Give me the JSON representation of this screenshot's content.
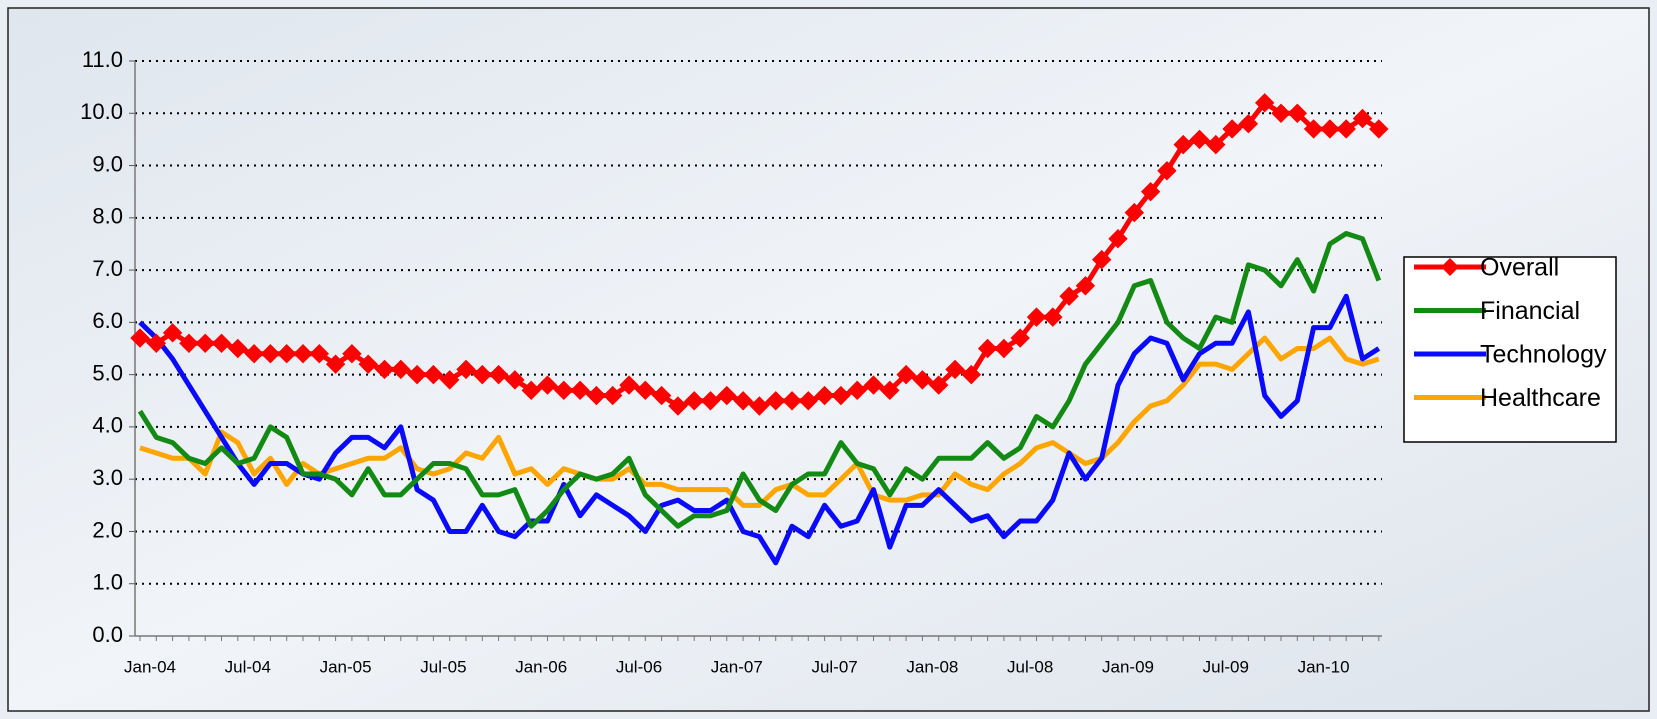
{
  "chart_data": {
    "type": "line",
    "categories": [
      "Jan-04",
      null,
      null,
      null,
      null,
      null,
      "Jul-04",
      null,
      null,
      null,
      null,
      null,
      "Jan-05",
      null,
      null,
      null,
      null,
      null,
      "Jul-05",
      null,
      null,
      null,
      null,
      null,
      "Jan-06",
      null,
      null,
      null,
      null,
      null,
      "Jul-06",
      null,
      null,
      null,
      null,
      null,
      "Jan-07",
      null,
      null,
      null,
      null,
      null,
      "Jul-07",
      null,
      null,
      null,
      null,
      null,
      "Jan-08",
      null,
      null,
      null,
      null,
      null,
      "Jul-08",
      null,
      null,
      null,
      null,
      null,
      "Jan-09",
      null,
      null,
      null,
      null,
      null,
      "Jul-09",
      null,
      null,
      null,
      null,
      null,
      "Jan-10",
      null,
      null,
      null,
      null
    ],
    "series": [
      {
        "name": "Overall",
        "color": "#ff0000",
        "marker": "diamond",
        "values": [
          5.7,
          5.6,
          5.8,
          5.6,
          5.6,
          5.6,
          5.5,
          5.4,
          5.4,
          5.4,
          5.4,
          5.4,
          5.2,
          5.4,
          5.2,
          5.1,
          5.1,
          5.0,
          5.0,
          4.9,
          5.1,
          5.0,
          5.0,
          4.9,
          4.7,
          4.8,
          4.7,
          4.7,
          4.6,
          4.6,
          4.8,
          4.7,
          4.6,
          4.4,
          4.5,
          4.5,
          4.6,
          4.5,
          4.4,
          4.5,
          4.5,
          4.5,
          4.6,
          4.6,
          4.7,
          4.8,
          4.7,
          5.0,
          4.9,
          4.8,
          5.1,
          5.0,
          5.5,
          5.5,
          5.7,
          6.1,
          6.1,
          6.5,
          6.7,
          7.2,
          7.6,
          8.1,
          8.5,
          8.9,
          9.4,
          9.5,
          9.4,
          9.7,
          9.8,
          10.2,
          10.0,
          10.0,
          9.7,
          9.7,
          9.7,
          9.9,
          9.7
        ]
      },
      {
        "name": "Financial",
        "color": "#138a13",
        "values": [
          4.3,
          3.8,
          3.7,
          3.4,
          3.3,
          3.6,
          3.3,
          3.4,
          4.0,
          3.8,
          3.1,
          3.1,
          3.0,
          2.7,
          3.2,
          2.7,
          2.7,
          3.0,
          3.3,
          3.3,
          3.2,
          2.7,
          2.7,
          2.8,
          2.1,
          2.4,
          2.8,
          3.1,
          3.0,
          3.1,
          3.4,
          2.7,
          2.4,
          2.1,
          2.3,
          2.3,
          2.4,
          3.1,
          2.6,
          2.4,
          2.9,
          3.1,
          3.1,
          3.7,
          3.3,
          3.2,
          2.7,
          3.2,
          3.0,
          3.4,
          3.4,
          3.4,
          3.7,
          3.4,
          3.6,
          4.2,
          4.0,
          4.5,
          5.2,
          5.6,
          6.0,
          6.7,
          6.8,
          6.0,
          5.7,
          5.5,
          6.1,
          6.0,
          7.1,
          7.0,
          6.7,
          7.2,
          6.6,
          7.5,
          7.7,
          7.6,
          6.8
        ]
      },
      {
        "name": "Technology",
        "color": "#0a0aff",
        "values": [
          6.0,
          5.7,
          5.3,
          4.8,
          4.3,
          3.8,
          3.3,
          2.9,
          3.3,
          3.3,
          3.1,
          3.0,
          3.5,
          3.8,
          3.8,
          3.6,
          4.0,
          2.8,
          2.6,
          2.0,
          2.0,
          2.5,
          2.0,
          1.9,
          2.2,
          2.2,
          2.9,
          2.3,
          2.7,
          2.5,
          2.3,
          2.0,
          2.5,
          2.6,
          2.4,
          2.4,
          2.6,
          2.0,
          1.9,
          1.4,
          2.1,
          1.9,
          2.5,
          2.1,
          2.2,
          2.8,
          1.7,
          2.5,
          2.5,
          2.8,
          2.5,
          2.2,
          2.3,
          1.9,
          2.2,
          2.2,
          2.6,
          3.5,
          3.0,
          3.4,
          4.8,
          5.4,
          5.7,
          5.6,
          4.9,
          5.4,
          5.6,
          5.6,
          6.2,
          4.6,
          4.2,
          4.5,
          5.9,
          5.9,
          6.5,
          5.3,
          5.5
        ]
      },
      {
        "name": "Healthcare",
        "color": "#ffa500",
        "values": [
          3.6,
          3.5,
          3.4,
          3.4,
          3.1,
          3.9,
          3.7,
          3.1,
          3.4,
          2.9,
          3.3,
          3.1,
          3.2,
          3.3,
          3.4,
          3.4,
          3.6,
          3.2,
          3.1,
          3.2,
          3.5,
          3.4,
          3.8,
          3.1,
          3.2,
          2.9,
          3.2,
          3.1,
          3.0,
          3.0,
          3.2,
          2.9,
          2.9,
          2.8,
          2.8,
          2.8,
          2.8,
          2.5,
          2.5,
          2.8,
          2.9,
          2.7,
          2.7,
          3.0,
          3.3,
          2.7,
          2.6,
          2.6,
          2.7,
          2.7,
          3.1,
          2.9,
          2.8,
          3.1,
          3.3,
          3.6,
          3.7,
          3.5,
          3.3,
          3.4,
          3.7,
          4.1,
          4.4,
          4.5,
          4.8,
          5.2,
          5.2,
          5.1,
          5.4,
          5.7,
          5.3,
          5.5,
          5.5,
          5.7,
          5.3,
          5.2,
          5.3
        ]
      }
    ],
    "ylim": [
      0,
      11
    ],
    "yticks": [
      {
        "value": 0,
        "label": "0.0"
      },
      {
        "value": 1,
        "label": "1.0"
      },
      {
        "value": 2,
        "label": "2.0"
      },
      {
        "value": 3,
        "label": "3.0"
      },
      {
        "value": 4,
        "label": "4.0"
      },
      {
        "value": 5,
        "label": "5.0"
      },
      {
        "value": 6,
        "label": "6.0"
      },
      {
        "value": 7,
        "label": "7.0"
      },
      {
        "value": 8,
        "label": "8.0"
      },
      {
        "value": 9,
        "label": "9.0"
      },
      {
        "value": 10,
        "label": "10.0"
      },
      {
        "value": 11,
        "label": "11.0"
      }
    ],
    "grid": true,
    "legend": "right"
  }
}
